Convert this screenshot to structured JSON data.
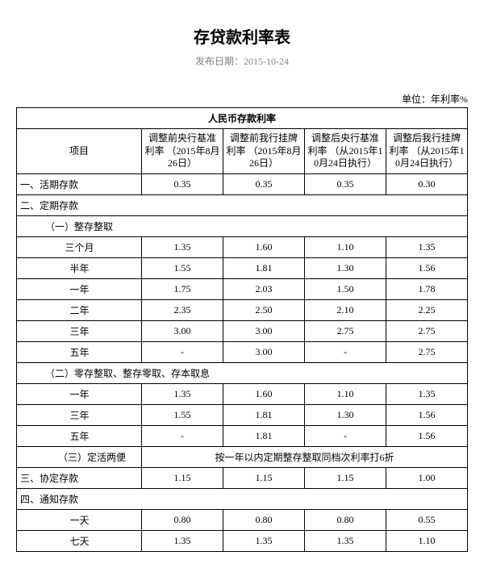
{
  "title": "存贷款利率表",
  "publish_label": "发布日期：",
  "publish_date": "2015-10-24",
  "unit_label": "单位：年利率%",
  "section_header": "人民币存款利率",
  "columns": {
    "item": "项目",
    "c1": "调整前央行基准利率\n（2015年8月26日）",
    "c2": "调整前我行挂牌利率\n（2015年8月26日）",
    "c3": "调整后央行基准利率\n（从2015年10月24日执行）",
    "c4": "调整后我行挂牌利率\n（从2015年10月24日执行）"
  },
  "rows": [
    {
      "type": "data",
      "label": "一、活期存款",
      "indent": 0,
      "v": [
        "0.35",
        "0.35",
        "0.35",
        "0.30"
      ]
    },
    {
      "type": "label",
      "label": "二、定期存款",
      "indent": 0
    },
    {
      "type": "label",
      "label": "（一）整存整取",
      "indent": 1
    },
    {
      "type": "data",
      "label": "三个月",
      "indent": 2,
      "v": [
        "1.35",
        "1.60",
        "1.10",
        "1.35"
      ]
    },
    {
      "type": "data",
      "label": "半年",
      "indent": 2,
      "v": [
        "1.55",
        "1.81",
        "1.30",
        "1.56"
      ]
    },
    {
      "type": "data",
      "label": "一年",
      "indent": 2,
      "v": [
        "1.75",
        "2.03",
        "1.50",
        "1.78"
      ]
    },
    {
      "type": "data",
      "label": "二年",
      "indent": 2,
      "v": [
        "2.35",
        "2.50",
        "2.10",
        "2.25"
      ]
    },
    {
      "type": "data",
      "label": "三年",
      "indent": 2,
      "v": [
        "3.00",
        "3.00",
        "2.75",
        "2.75"
      ]
    },
    {
      "type": "data",
      "label": "五年",
      "indent": 2,
      "v": [
        "-",
        "3.00",
        "-",
        "2.75"
      ]
    },
    {
      "type": "label",
      "label": "（二）零存整取、整存零取、存本取息",
      "indent": 1
    },
    {
      "type": "data",
      "label": "一年",
      "indent": 2,
      "v": [
        "1.35",
        "1.60",
        "1.10",
        "1.35"
      ]
    },
    {
      "type": "data",
      "label": "三年",
      "indent": 2,
      "v": [
        "1.55",
        "1.81",
        "1.30",
        "1.56"
      ]
    },
    {
      "type": "data",
      "label": "五年",
      "indent": 2,
      "v": [
        "-",
        "1.81",
        "-",
        "1.56"
      ]
    },
    {
      "type": "note",
      "label": "（三）定活两便",
      "indent": 1,
      "note": "按一年以内定期整存整取同档次利率打6折"
    },
    {
      "type": "data",
      "label": "三、协定存款",
      "indent": 0,
      "v": [
        "1.15",
        "1.15",
        "1.15",
        "1.00"
      ]
    },
    {
      "type": "label",
      "label": "四、通知存款",
      "indent": 0
    },
    {
      "type": "data",
      "label": "一天",
      "indent": 2,
      "v": [
        "0.80",
        "0.80",
        "0.80",
        "0.55"
      ]
    },
    {
      "type": "data",
      "label": "七天",
      "indent": 2,
      "v": [
        "1.35",
        "1.35",
        "1.35",
        "1.10"
      ]
    }
  ]
}
